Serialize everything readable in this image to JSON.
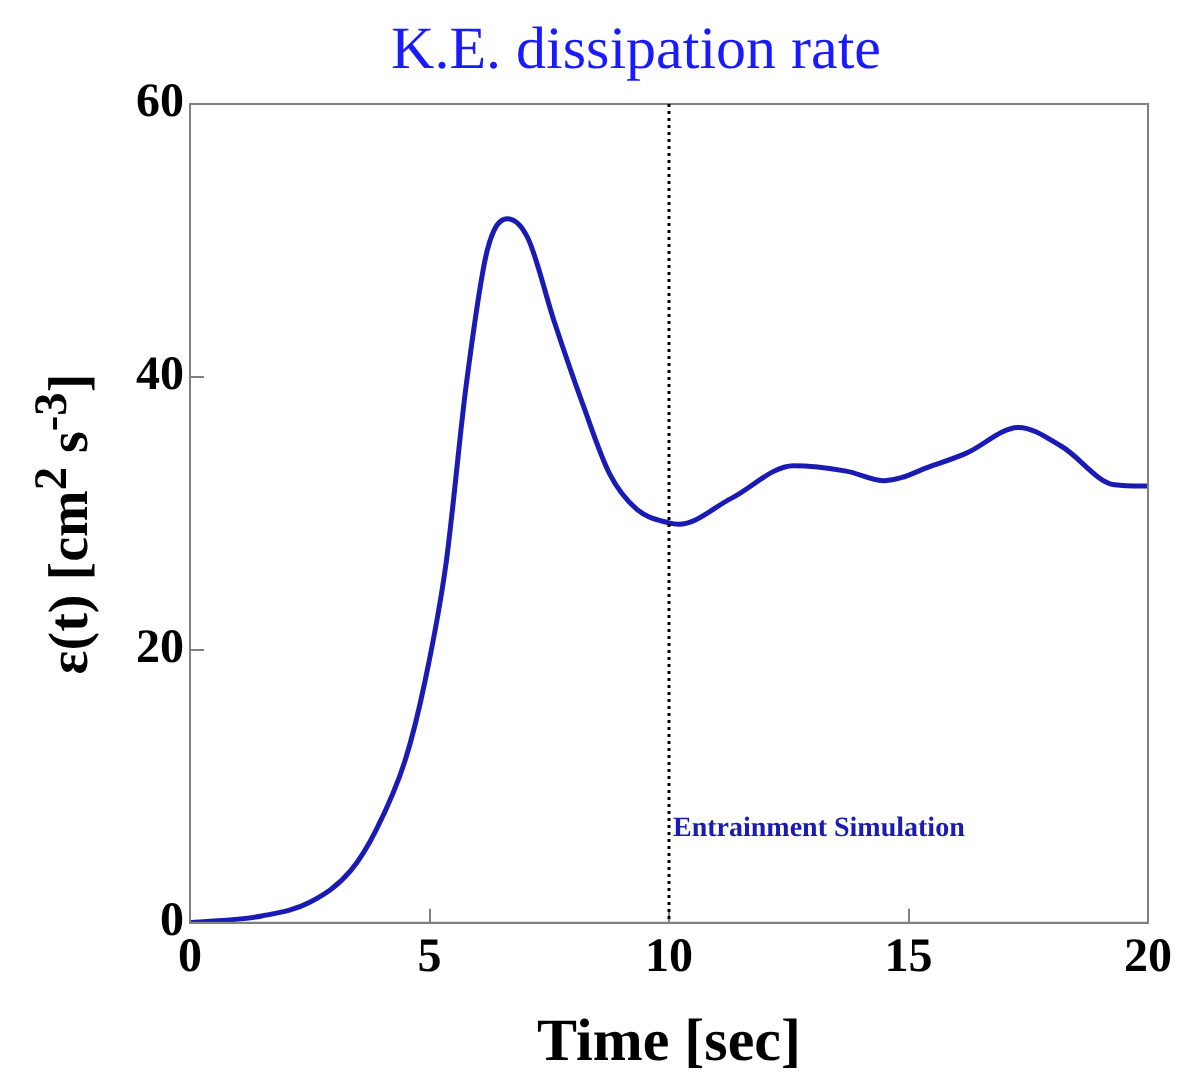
{
  "chart_data": {
    "type": "line",
    "title": "K.E. dissipation rate",
    "xlabel": "Time [sec]",
    "ylabel": "ε(t) [cm$^{2}$ s$^{-3}$]",
    "series": [
      {
        "color": "#1a1ab4",
        "x": [
          0,
          1.5,
          2.5,
          3.35,
          3.9,
          4.5,
          4.9,
          5.34,
          5.77,
          6.2,
          6.62,
          7.05,
          7.6,
          8.2,
          8.76,
          9.33,
          10,
          10.2,
          11.3,
          12.6,
          13.7,
          14.5,
          15.5,
          16.2,
          17.3,
          18.2,
          19.3,
          20
        ],
        "values": [
          0,
          0.5,
          1.5,
          3.8,
          6.9,
          12,
          17.6,
          26.2,
          39.5,
          49.2,
          51.6,
          50.2,
          44.1,
          38,
          32.9,
          30.3,
          29.3,
          29.2,
          31.1,
          33.5,
          33.1,
          32.4,
          33.5,
          34.4,
          36.3,
          34.9,
          32.1,
          32
        ]
      }
    ],
    "xlim": [
      0,
      20
    ],
    "xticks": [
      0,
      5,
      10,
      15,
      20
    ],
    "ylim": [
      0,
      60
    ],
    "yticks": [
      0,
      20,
      40,
      60
    ],
    "grid": false,
    "legend": false,
    "marker": "none",
    "line_style": "solid",
    "ref_lines": [
      {
        "axis": "x",
        "value": 10,
        "label": "Entrainment Simulation",
        "color": "#000000",
        "line_style": "dotted"
      }
    ]
  }
}
